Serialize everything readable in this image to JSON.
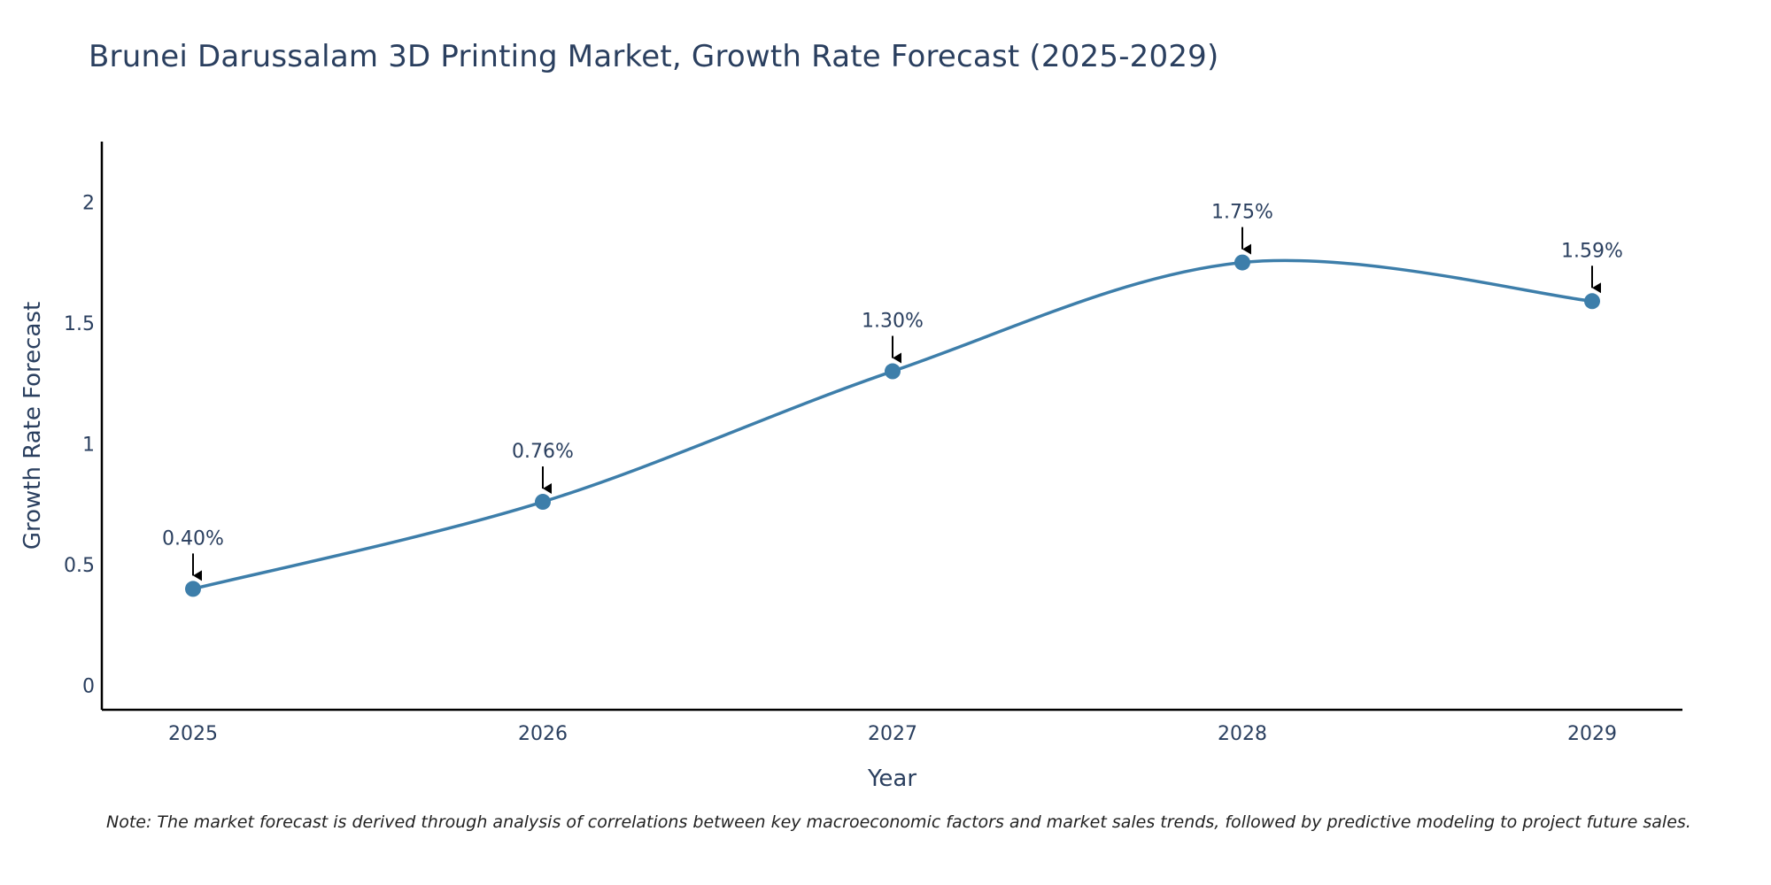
{
  "title": "Brunei Darussalam 3D Printing Market, Growth Rate Forecast (2025-2029)",
  "note": "Note: The market forecast is derived through analysis of correlations between key macroeconomic factors and market sales trends, followed by predictive modeling to project future sales.",
  "colors": {
    "line": "#3d7eaa",
    "marker": "#3d7eaa",
    "axis": "#000000",
    "text": "#2a3f5f"
  },
  "chart_data": {
    "type": "line",
    "title": "Brunei Darussalam 3D Printing Market, Growth Rate Forecast (2025-2029)",
    "xlabel": "Year",
    "ylabel": "Growth Rate Forecast",
    "categories": [
      "2025",
      "2026",
      "2027",
      "2028",
      "2029"
    ],
    "values": [
      0.4,
      0.76,
      1.3,
      1.75,
      1.59
    ],
    "data_labels": [
      "0.40%",
      "0.76%",
      "1.30%",
      "1.75%",
      "1.59%"
    ],
    "yticks": [
      "0",
      "0.5",
      "1",
      "1.5",
      "2"
    ],
    "ylim": [
      -0.1,
      2.25
    ],
    "grid": false,
    "line_shape": "spline"
  }
}
